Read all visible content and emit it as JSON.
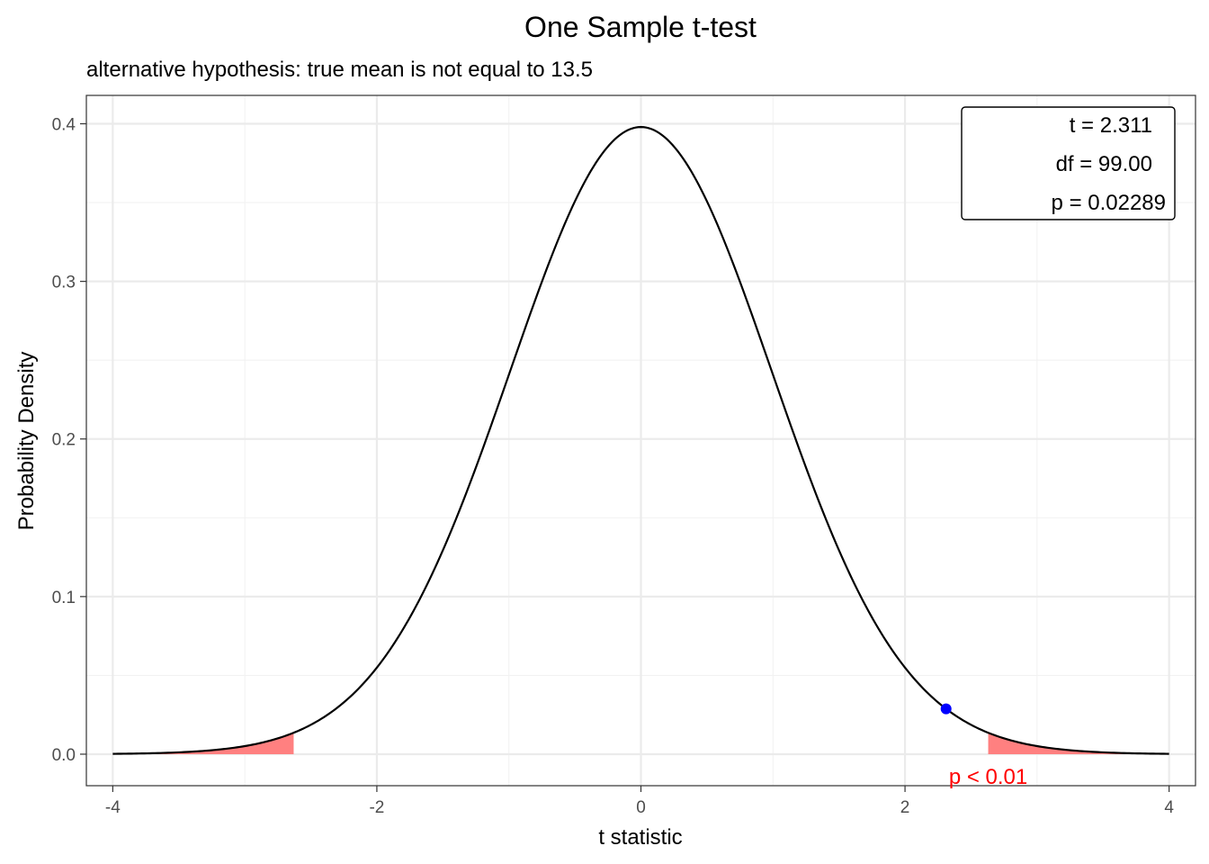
{
  "chart_data": {
    "type": "line",
    "title": "One Sample t-test",
    "subtitle": "alternative hypothesis: true mean is not equal to 13.5",
    "xlabel": "t statistic",
    "ylabel": "Probability Density",
    "xlim": [
      -4.2,
      4.2
    ],
    "ylim": [
      -0.02,
      0.418
    ],
    "x_ticks": [
      -4,
      -2,
      0,
      2,
      4
    ],
    "x_tick_labels": [
      "-4",
      "-2",
      "0",
      "2",
      "4"
    ],
    "y_ticks": [
      0.0,
      0.1,
      0.2,
      0.3,
      0.4
    ],
    "y_tick_labels": [
      "0.0",
      "0.1",
      "0.2",
      "0.3",
      "0.4"
    ],
    "grid": true,
    "curve": {
      "df": 99,
      "x_range": [
        -4,
        4
      ],
      "color": "#000000"
    },
    "rejection_regions": [
      {
        "x_from": -4,
        "x_to": -2.63
      },
      {
        "x_from": 2.63,
        "x_to": 4
      }
    ],
    "rejection_color": "#ff8080",
    "observed_point": {
      "t": 2.311,
      "color": "#0000ff"
    },
    "critical_label": {
      "text": "p < 0.01",
      "t": 2.63,
      "color": "#ff0000"
    },
    "stats": {
      "t_label": "t = 2.311",
      "df_label": "df = 99.00",
      "p_label": "p = 0.02289"
    }
  }
}
